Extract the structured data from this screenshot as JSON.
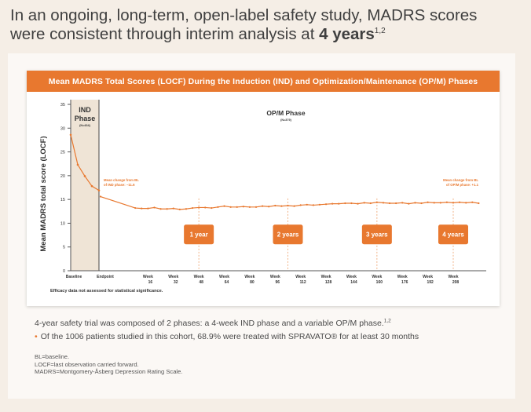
{
  "headline": {
    "line1": "In an ongoing, long-term, open-label safety study, MADRS scores",
    "line2_prefix": "were consistent through interim analysis at ",
    "line2_bold": "4 years",
    "line2_sup": "1,2"
  },
  "chart_title": "Mean MADRS Total Scores (LOCF) During the Induction (IND) and Optimization/Maintenance (OP/M) Phases",
  "chart_data": {
    "type": "line",
    "title": "Mean MADRS Total Scores (LOCF) During the Induction (IND) and Optimization/Maintenance (OP/M) Phases",
    "ylabel": "Mean MADRS total score (LOCF)",
    "xlabel": "",
    "ylim": [
      0,
      35
    ],
    "yticks": [
      0,
      5,
      10,
      15,
      20,
      25,
      30,
      35
    ],
    "grid": false,
    "x_labels": [
      {
        "l1": "Baseline",
        "l2": ""
      },
      {
        "l1": "Endpoint",
        "l2": ""
      },
      {
        "l1": "Week",
        "l2": "16"
      },
      {
        "l1": "Week",
        "l2": "32"
      },
      {
        "l1": "Week",
        "l2": "48"
      },
      {
        "l1": "Week",
        "l2": "64"
      },
      {
        "l1": "Week",
        "l2": "80"
      },
      {
        "l1": "Week",
        "l2": "96"
      },
      {
        "l1": "Week",
        "l2": "112"
      },
      {
        "l1": "Week",
        "l2": "128"
      },
      {
        "l1": "Week",
        "l2": "144"
      },
      {
        "l1": "Week",
        "l2": "160"
      },
      {
        "l1": "Week",
        "l2": "176"
      },
      {
        "l1": "Week",
        "l2": "192"
      },
      {
        "l1": "Week",
        "l2": "208"
      }
    ],
    "ind_points": [
      {
        "week": 0,
        "score": 28.6
      },
      {
        "week": 1,
        "score": 22.3
      },
      {
        "week": 2,
        "score": 19.9
      },
      {
        "week": 3,
        "score": 17.8
      },
      {
        "week": 4,
        "score": 16.9
      }
    ],
    "opm_points": [
      {
        "week": 4,
        "score": 15.6
      },
      {
        "week": 8,
        "score": 13.2
      },
      {
        "week": 12,
        "score": 13.1
      },
      {
        "week": 16,
        "score": 13.1
      },
      {
        "week": 20,
        "score": 13.3
      },
      {
        "week": 24,
        "score": 13.0
      },
      {
        "week": 28,
        "score": 13.0
      },
      {
        "week": 32,
        "score": 13.1
      },
      {
        "week": 36,
        "score": 12.9
      },
      {
        "week": 40,
        "score": 13.0
      },
      {
        "week": 44,
        "score": 13.2
      },
      {
        "week": 48,
        "score": 13.3
      },
      {
        "week": 52,
        "score": 13.3
      },
      {
        "week": 56,
        "score": 13.2
      },
      {
        "week": 60,
        "score": 13.4
      },
      {
        "week": 64,
        "score": 13.6
      },
      {
        "week": 68,
        "score": 13.4
      },
      {
        "week": 72,
        "score": 13.4
      },
      {
        "week": 76,
        "score": 13.5
      },
      {
        "week": 80,
        "score": 13.4
      },
      {
        "week": 84,
        "score": 13.4
      },
      {
        "week": 88,
        "score": 13.6
      },
      {
        "week": 92,
        "score": 13.5
      },
      {
        "week": 96,
        "score": 13.7
      },
      {
        "week": 100,
        "score": 13.6
      },
      {
        "week": 104,
        "score": 13.7
      },
      {
        "week": 108,
        "score": 13.6
      },
      {
        "week": 112,
        "score": 13.8
      },
      {
        "week": 116,
        "score": 13.9
      },
      {
        "week": 120,
        "score": 13.8
      },
      {
        "week": 124,
        "score": 13.9
      },
      {
        "week": 128,
        "score": 14.0
      },
      {
        "week": 132,
        "score": 14.1
      },
      {
        "week": 136,
        "score": 14.1
      },
      {
        "week": 140,
        "score": 14.2
      },
      {
        "week": 144,
        "score": 14.2
      },
      {
        "week": 148,
        "score": 14.1
      },
      {
        "week": 152,
        "score": 14.3
      },
      {
        "week": 156,
        "score": 14.2
      },
      {
        "week": 160,
        "score": 14.4
      },
      {
        "week": 164,
        "score": 14.3
      },
      {
        "week": 168,
        "score": 14.2
      },
      {
        "week": 172,
        "score": 14.2
      },
      {
        "week": 176,
        "score": 14.3
      },
      {
        "week": 180,
        "score": 14.1
      },
      {
        "week": 184,
        "score": 14.3
      },
      {
        "week": 188,
        "score": 14.2
      },
      {
        "week": 192,
        "score": 14.4
      },
      {
        "week": 196,
        "score": 14.3
      },
      {
        "week": 200,
        "score": 14.3
      },
      {
        "week": 204,
        "score": 14.4
      },
      {
        "week": 208,
        "score": 14.3
      },
      {
        "week": 212,
        "score": 14.4
      },
      {
        "week": 216,
        "score": 14.3
      },
      {
        "week": 220,
        "score": 14.4
      },
      {
        "week": 224,
        "score": 14.2
      }
    ],
    "series_color": "#e8782f",
    "ind_phase": {
      "title_line1": "IND",
      "title_line2": "Phase",
      "n": "(N=434)"
    },
    "opm_phase": {
      "title": "OP/M Phase",
      "n": "(N=379)"
    },
    "annotation_left": {
      "line1": "Mean change from BL",
      "line2": "of IND phase: −11.6"
    },
    "annotation_right": {
      "line1": "Mean change from BL",
      "line2": "of OP/M phase: +1.1"
    },
    "year_markers": [
      {
        "label": "1 year",
        "week": 48
      },
      {
        "label": "2 years",
        "week": 104
      },
      {
        "label": "3 years",
        "week": 160
      },
      {
        "label": "4 years",
        "week": 208
      }
    ],
    "footnote": "Efficacy data not assessed for statistical significance."
  },
  "notes": {
    "line1": "4-year safety trial was composed of 2 phases: a 4-week IND phase and a variable OP/M phase.",
    "line1_sup": "1,2",
    "bullet": "Of the 1006 patients studied in this cohort, 68.9% were treated with SPRAVATO® for at least 30 months"
  },
  "abbreviations": [
    "BL=baseline.",
    "LOCF=last observation carried forward.",
    "MADRS=Montgomery-Åsberg Depression Rating Scale."
  ],
  "colors": {
    "accent": "#e8782f",
    "ind_shade": "#efe4d6",
    "page_bg": "#f5eee6"
  }
}
